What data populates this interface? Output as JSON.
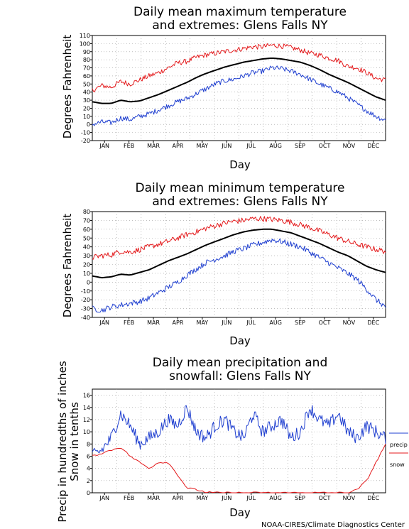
{
  "credit": "NOAA-CIRES/Climate Diagnostics Center",
  "months": [
    "JAN",
    "FEB",
    "MAR",
    "APR",
    "MAY",
    "JUN",
    "JUL",
    "AUG",
    "SEP",
    "OCT",
    "NOV",
    "DEC"
  ],
  "chart_data": [
    {
      "type": "line",
      "title": [
        "Daily mean maximum temperature",
        "and extremes: Glens Falls NY"
      ],
      "xlabel": "Day",
      "ylabel": "Degrees Fahrenheit",
      "ylim": [
        -20,
        110
      ],
      "yticks": [
        -20,
        -10,
        0,
        10,
        20,
        30,
        40,
        50,
        60,
        70,
        80,
        90,
        100,
        110
      ],
      "grid": true,
      "series": [
        {
          "key": "mean",
          "color": "#000000",
          "width": 2,
          "values": [
            28,
            26,
            26,
            30,
            28,
            29,
            33,
            37,
            42,
            47,
            52,
            58,
            63,
            67,
            71,
            74,
            77,
            79,
            81,
            82,
            81,
            79,
            77,
            73,
            68,
            62,
            57,
            52,
            46,
            40,
            34,
            30
          ]
        },
        {
          "key": "high",
          "color": "#e41a1c",
          "width": 1,
          "values": [
            42,
            48,
            46,
            53,
            50,
            55,
            60,
            64,
            70,
            76,
            78,
            83,
            86,
            88,
            90,
            92,
            94,
            96,
            96,
            98,
            97,
            95,
            92,
            88,
            86,
            82,
            79,
            72,
            70,
            64,
            57,
            55
          ]
        },
        {
          "key": "low",
          "color": "#1f3fd0",
          "width": 1,
          "values": [
            0,
            3,
            2,
            8,
            6,
            10,
            13,
            18,
            23,
            28,
            32,
            38,
            44,
            50,
            54,
            56,
            60,
            64,
            66,
            70,
            69,
            66,
            62,
            56,
            50,
            45,
            40,
            33,
            25,
            17,
            10,
            5
          ]
        }
      ]
    },
    {
      "type": "line",
      "title": [
        "Daily mean minimum temperature",
        "and extremes: Glens Falls NY"
      ],
      "xlabel": "Day",
      "ylabel": "Degrees Fahrenheit",
      "ylim": [
        -40,
        80
      ],
      "yticks": [
        -40,
        -30,
        -20,
        -10,
        0,
        10,
        20,
        30,
        40,
        50,
        60,
        70,
        80
      ],
      "grid": true,
      "series": [
        {
          "key": "mean",
          "color": "#000000",
          "width": 2,
          "values": [
            7,
            5,
            6,
            9,
            8,
            11,
            14,
            19,
            24,
            28,
            32,
            37,
            42,
            46,
            50,
            54,
            57,
            59,
            60,
            60,
            58,
            56,
            52,
            48,
            44,
            39,
            34,
            30,
            24,
            18,
            14,
            11
          ]
        },
        {
          "key": "high",
          "color": "#e41a1c",
          "width": 1,
          "values": [
            28,
            30,
            31,
            35,
            34,
            37,
            40,
            43,
            46,
            50,
            54,
            57,
            61,
            64,
            67,
            69,
            70,
            72,
            72,
            71,
            70,
            68,
            65,
            62,
            58,
            54,
            50,
            46,
            43,
            40,
            37,
            35
          ]
        },
        {
          "key": "low",
          "color": "#1f3fd0",
          "width": 1,
          "values": [
            -30,
            -32,
            -28,
            -26,
            -24,
            -22,
            -18,
            -12,
            -6,
            0,
            8,
            15,
            22,
            26,
            30,
            35,
            38,
            42,
            45,
            48,
            46,
            43,
            40,
            34,
            28,
            22,
            16,
            10,
            3,
            -8,
            -20,
            -28
          ]
        }
      ]
    },
    {
      "type": "line",
      "title": [
        "Daily mean precipitation and",
        "snowfall: Glens Falls NY"
      ],
      "xlabel": "Day",
      "ylabel": [
        "Precip in hundredths of inches",
        "Snow in tenths"
      ],
      "ylim": [
        0,
        17
      ],
      "yticks": [
        0,
        2,
        4,
        6,
        8,
        10,
        12,
        14,
        16
      ],
      "grid": true,
      "legend": [
        {
          "label": "precip",
          "color": "#1f3fd0"
        },
        {
          "label": "snow",
          "color": "#e41a1c"
        }
      ],
      "series": [
        {
          "key": "precip",
          "name": "precip",
          "color": "#1f3fd0",
          "width": 1,
          "values": [
            6,
            7,
            9,
            13,
            11,
            8,
            9,
            10,
            12,
            11,
            14,
            10,
            9,
            11,
            12,
            10,
            9,
            13,
            10,
            11,
            12,
            9,
            10,
            14,
            12,
            11,
            13,
            10,
            9,
            11,
            10,
            9
          ]
        },
        {
          "key": "snow",
          "name": "snow",
          "color": "#e41a1c",
          "width": 1,
          "values": [
            6,
            6.5,
            7,
            7.5,
            6,
            5,
            4,
            5,
            5,
            3,
            0.8,
            0.5,
            0.1,
            0,
            0,
            0,
            0,
            0,
            0,
            0,
            0,
            0,
            0,
            0,
            0,
            0,
            0,
            0,
            0.5,
            2,
            5,
            8
          ]
        }
      ]
    }
  ]
}
